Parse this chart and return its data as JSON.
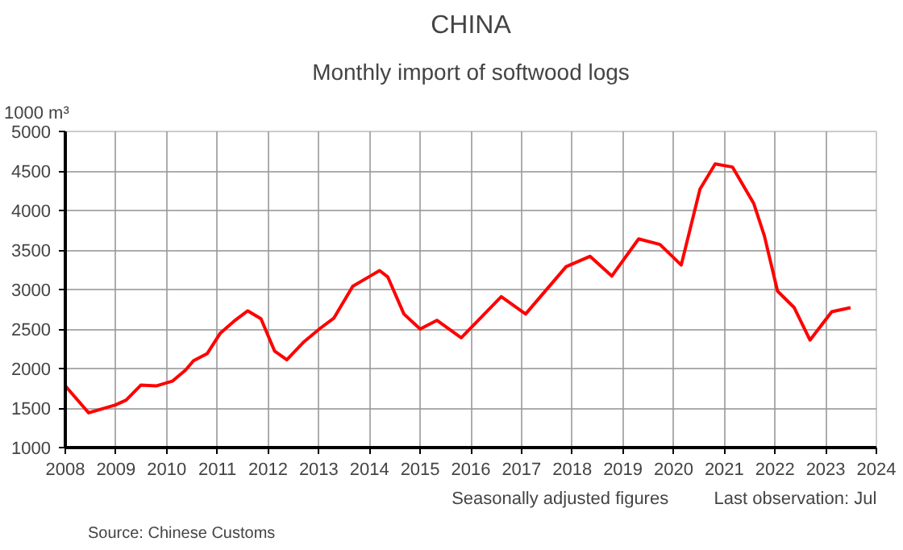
{
  "chart_data": {
    "type": "line",
    "title": "CHINA",
    "subtitle": "Monthly import of softwood logs",
    "ylabel": "1000 m³",
    "x": [
      2008.0,
      2008.46,
      2008.99,
      2009.2,
      2009.49,
      2009.79,
      2010.11,
      2010.37,
      2010.53,
      2010.8,
      2011.06,
      2011.33,
      2011.6,
      2011.86,
      2012.13,
      2012.37,
      2012.71,
      2013.03,
      2013.3,
      2013.67,
      2014.04,
      2014.2,
      2014.36,
      2014.68,
      2015.0,
      2015.33,
      2015.81,
      2016.6,
      2017.08,
      2017.88,
      2018.35,
      2018.78,
      2019.31,
      2019.73,
      2020.15,
      2020.52,
      2020.82,
      2021.16,
      2021.58,
      2021.79,
      2022.05,
      2022.38,
      2022.69,
      2023.12,
      2023.49
    ],
    "series": [
      {
        "color": "#ff0000",
        "values": [
          1780,
          1440,
          1540,
          1600,
          1790,
          1780,
          1840,
          1980,
          2100,
          2190,
          2450,
          2600,
          2730,
          2630,
          2220,
          2110,
          2340,
          2510,
          2640,
          3040,
          3180,
          3240,
          3160,
          2690,
          2500,
          2610,
          2390,
          2910,
          2690,
          3290,
          3420,
          3170,
          3640,
          3570,
          3310,
          4270,
          4590,
          4550,
          4090,
          3680,
          2980,
          2770,
          2360,
          2720,
          2770
        ]
      }
    ],
    "xlim": [
      2008,
      2024
    ],
    "xticks": [
      2008,
      2009,
      2010,
      2011,
      2012,
      2013,
      2014,
      2015,
      2016,
      2017,
      2018,
      2019,
      2020,
      2021,
      2022,
      2023,
      2024
    ],
    "ylim": [
      1000,
      5000
    ],
    "yticks": [
      1000,
      1500,
      2000,
      2500,
      3000,
      3500,
      4000,
      4500,
      5000
    ],
    "grid": true,
    "marker": "none",
    "line_style": "solid",
    "annotations": [
      "Seasonally adjusted figures",
      "Last observation: Jul",
      "Source: Chinese Customs"
    ]
  }
}
